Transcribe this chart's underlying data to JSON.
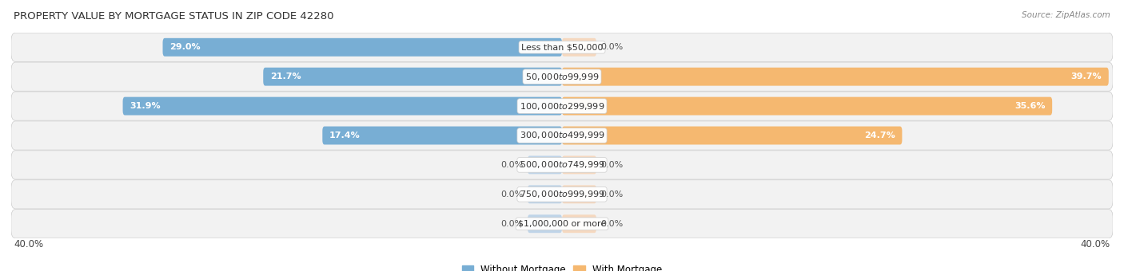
{
  "title": "PROPERTY VALUE BY MORTGAGE STATUS IN ZIP CODE 42280",
  "source": "Source: ZipAtlas.com",
  "categories": [
    "Less than $50,000",
    "$50,000 to $99,999",
    "$100,000 to $299,999",
    "$300,000 to $499,999",
    "$500,000 to $749,999",
    "$750,000 to $999,999",
    "$1,000,000 or more"
  ],
  "without_mortgage": [
    29.0,
    21.7,
    31.9,
    17.4,
    0.0,
    0.0,
    0.0
  ],
  "with_mortgage": [
    0.0,
    39.7,
    35.6,
    24.7,
    0.0,
    0.0,
    0.0
  ],
  "max_value": 40.0,
  "color_without": "#78aed4",
  "color_with": "#f5b870",
  "color_without_stub": "#aac8e4",
  "color_with_stub": "#f7ceaa",
  "bar_height": 0.62,
  "stub_size": 2.5,
  "label_threshold": 3.0
}
